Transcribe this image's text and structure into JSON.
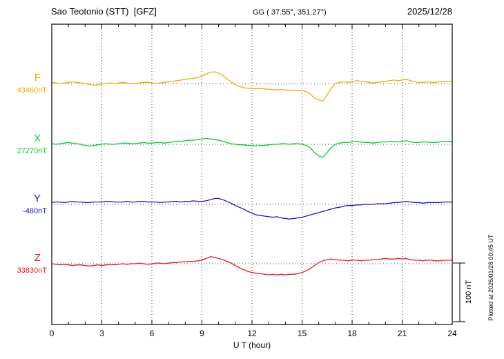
{
  "header": {
    "station": "Sao Teotonio (STT)  [GFZ]",
    "coords": "GG ( 37.55°, 351.27°)",
    "date": "2025/12/28"
  },
  "axis": {
    "xlabel": "U T (hour)",
    "ticks": [
      0,
      3,
      6,
      9,
      12,
      15,
      18,
      21,
      24
    ]
  },
  "scalebar": {
    "label": "100 nT",
    "nT": 100
  },
  "footer": {
    "plotted": "Plotted at 2026/01/28 00:45 UT"
  },
  "chart_data": {
    "type": "line",
    "title": "Sao Teotonio (STT) magnetogram",
    "x_unit": "hour",
    "x_range": [
      0,
      24
    ],
    "step_hours": 0.25,
    "grid": "dotted vertical every 3 h, dotted baseline per component",
    "series": [
      {
        "name": "F",
        "baseline_label": "43460nT",
        "baseline_nT": 43460,
        "color": "#f5a800",
        "values": [
          2,
          1,
          0,
          1,
          2,
          3,
          2,
          1,
          0,
          -2,
          -3,
          -2,
          -1,
          0,
          1,
          0,
          1,
          2,
          1,
          0,
          0,
          1,
          2,
          2,
          1,
          0,
          1,
          2,
          3,
          4,
          5,
          6,
          7,
          8,
          9,
          10,
          13,
          16,
          19,
          20,
          18,
          14,
          8,
          3,
          -2,
          -5,
          -7,
          -8,
          -8,
          -9,
          -8,
          -9,
          -10,
          -10,
          -11,
          -10,
          -11,
          -12,
          -11,
          -12,
          -12,
          -14,
          -18,
          -25,
          -28,
          -30,
          -20,
          -8,
          0,
          2,
          3,
          2,
          3,
          5,
          4,
          3,
          2,
          1,
          2,
          3,
          4,
          5,
          6,
          5,
          6,
          7,
          5,
          3,
          2,
          2,
          3,
          2,
          2,
          3,
          3,
          4,
          4
        ]
      },
      {
        "name": "X",
        "baseline_label": "27270nT",
        "baseline_nT": 27270,
        "color": "#00d12a",
        "values": [
          1,
          0,
          1,
          2,
          3,
          2,
          1,
          0,
          -2,
          -3,
          -2,
          -1,
          0,
          1,
          0,
          0,
          1,
          2,
          2,
          1,
          1,
          2,
          3,
          2,
          2,
          3,
          3,
          2,
          3,
          4,
          5,
          5,
          6,
          7,
          7,
          8,
          9,
          10,
          9,
          8,
          7,
          5,
          3,
          1,
          0,
          -1,
          -1,
          -2,
          -2,
          -3,
          -2,
          -2,
          -1,
          0,
          0,
          1,
          1,
          0,
          1,
          1,
          0,
          -2,
          -6,
          -14,
          -20,
          -22,
          -14,
          -5,
          0,
          2,
          3,
          3,
          4,
          5,
          4,
          3,
          3,
          2,
          3,
          4,
          4,
          5,
          5,
          4,
          5,
          6,
          4,
          3,
          3,
          4,
          4,
          3,
          3,
          4,
          5,
          5,
          5
        ]
      },
      {
        "name": "Y",
        "baseline_label": "-480nT",
        "baseline_nT": -480,
        "color": "#1414d2",
        "values": [
          3,
          4,
          4,
          3,
          4,
          5,
          4,
          4,
          3,
          3,
          4,
          4,
          4,
          5,
          5,
          4,
          4,
          4,
          5,
          4,
          4,
          5,
          5,
          4,
          4,
          4,
          3,
          4,
          4,
          5,
          5,
          4,
          5,
          5,
          6,
          5,
          5,
          6,
          8,
          10,
          10,
          8,
          5,
          2,
          -2,
          -5,
          -8,
          -12,
          -15,
          -18,
          -19,
          -20,
          -21,
          -22,
          -21,
          -23,
          -24,
          -25,
          -24,
          -23,
          -22,
          -20,
          -18,
          -16,
          -14,
          -12,
          -10,
          -8,
          -6,
          -5,
          -3,
          -2,
          -2,
          -1,
          -1,
          0,
          0,
          0,
          1,
          1,
          1,
          2,
          3,
          3,
          4,
          5,
          4,
          3,
          3,
          2,
          3,
          3,
          3,
          3,
          4,
          4,
          4
        ]
      },
      {
        "name": "Z",
        "baseline_label": "33830nT",
        "baseline_nT": 33830,
        "color": "#e81818",
        "values": [
          0,
          -1,
          -2,
          -1,
          -2,
          -3,
          -2,
          -2,
          -3,
          -4,
          -3,
          -2,
          -3,
          -2,
          -1,
          -2,
          -1,
          0,
          -1,
          0,
          0,
          1,
          0,
          -1,
          0,
          1,
          1,
          0,
          1,
          2,
          2,
          3,
          3,
          4,
          4,
          5,
          6,
          9,
          12,
          11,
          9,
          7,
          4,
          1,
          -3,
          -7,
          -10,
          -13,
          -15,
          -16,
          -17,
          -18,
          -19,
          -18,
          -19,
          -18,
          -19,
          -18,
          -18,
          -17,
          -15,
          -12,
          -8,
          -3,
          2,
          5,
          7,
          8,
          7,
          6,
          6,
          5,
          6,
          6,
          5,
          6,
          6,
          7,
          7,
          8,
          9,
          8,
          8,
          9,
          8,
          9,
          7,
          6,
          6,
          5,
          6,
          6,
          5,
          5,
          6,
          6,
          6
        ]
      }
    ]
  }
}
